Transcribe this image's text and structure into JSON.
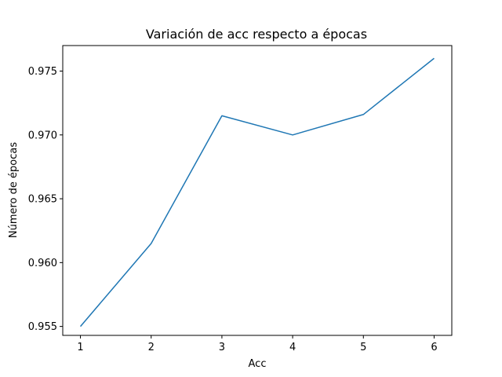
{
  "chart_data": {
    "type": "line",
    "title": "Variación de acc respecto a épocas",
    "xlabel": "Acc",
    "ylabel": "Número de épocas",
    "x": [
      1,
      2,
      3,
      4,
      5,
      6
    ],
    "series": [
      {
        "values": [
          0.955,
          0.9615,
          0.9715,
          0.97,
          0.9716,
          0.976
        ]
      }
    ],
    "xlim": [
      0.75,
      6.25
    ],
    "ylim": [
      0.9543,
      0.977
    ],
    "xticks": [
      "1",
      "2",
      "3",
      "4",
      "5",
      "6"
    ],
    "yticks": [
      "0.955",
      "0.960",
      "0.965",
      "0.970",
      "0.975"
    ],
    "grid": false,
    "legend": "none",
    "colors": {
      "line": "#1f77b4"
    }
  }
}
